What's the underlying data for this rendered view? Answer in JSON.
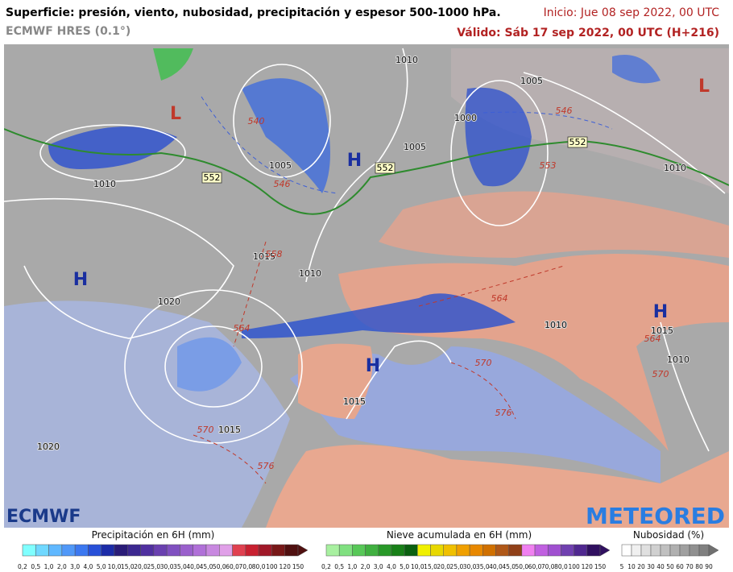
{
  "header": {
    "title": "Superficie: presión, viento, nubosidad, precipitación y espesor 500-1000 hPa.",
    "model": "ECMWF HRES (0.1°)",
    "init": "Inicio: Jue 08 sep 2022, 00 UTC",
    "valid": "Válido: Sáb 17 sep 2022, 00 UTC (H+216)"
  },
  "map": {
    "pressure_centers": [
      "H",
      "H",
      "H",
      "H",
      "L",
      "L"
    ],
    "isobar_labels": [
      "1010",
      "1005",
      "1000",
      "1005",
      "1005",
      "1010",
      "1010",
      "1015",
      "1010",
      "1020",
      "1010",
      "1015",
      "1010",
      "1015",
      "1015",
      "1020"
    ],
    "thickness_labels": [
      "552",
      "552",
      "552",
      "546",
      "546",
      "540",
      "558",
      "564",
      "564",
      "570",
      "570",
      "576",
      "576",
      "553",
      "564",
      "570"
    ],
    "logos": [
      "ECMWF",
      "METEORED"
    ]
  },
  "legends": [
    {
      "title": "Precipitación en 6H (mm)",
      "ticks": [
        "0,2",
        "0,5",
        "1,0",
        "2,0",
        "3,0",
        "4,0",
        "5,0",
        "10,0",
        "15,0",
        "20,0",
        "25,0",
        "30,0",
        "35,0",
        "40,0",
        "45,0",
        "50,0",
        "60,0",
        "70,0",
        "80,0",
        "100",
        "120",
        "150"
      ]
    },
    {
      "title": "Nieve acumulada en 6H (mm)",
      "ticks": [
        "0,2",
        "0,5",
        "1,0",
        "2,0",
        "3,0",
        "4,0",
        "5,0",
        "10,0",
        "15,0",
        "20,0",
        "25,0",
        "30,0",
        "35,0",
        "40,0",
        "45,0",
        "50,0",
        "60,0",
        "70,0",
        "80,0",
        "100",
        "120",
        "150"
      ]
    },
    {
      "title": "Nubosidad (%)",
      "ticks": [
        "5",
        "10",
        "20",
        "30",
        "40",
        "50",
        "60",
        "70",
        "80",
        "90"
      ]
    }
  ]
}
